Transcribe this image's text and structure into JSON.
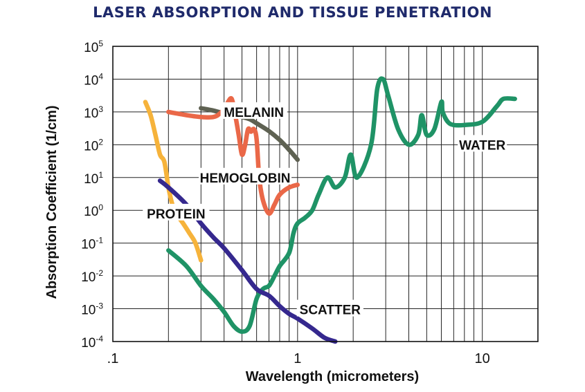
{
  "chart_data": {
    "type": "line",
    "title": "LASER ABSORPTION AND TISSUE PENETRATION",
    "xlabel": "Wavelength (micrometers)",
    "ylabel": "Absorption Coefficient (1/cm)",
    "x_scale": "log",
    "y_scale": "log",
    "xlim": [
      0.1,
      20
    ],
    "ylim": [
      0.0001,
      100000
    ],
    "grid": true,
    "x_ticks": [
      {
        "value": 0.1,
        "label": ".1"
      },
      {
        "value": 1,
        "label": "1"
      },
      {
        "value": 10,
        "label": "10"
      }
    ],
    "y_ticks": [
      {
        "value": 100000,
        "base": "10",
        "exp": "5"
      },
      {
        "value": 10000,
        "base": "10",
        "exp": "4"
      },
      {
        "value": 1000,
        "base": "10",
        "exp": "3"
      },
      {
        "value": 100,
        "base": "10",
        "exp": "2"
      },
      {
        "value": 10,
        "base": "10",
        "exp": "1"
      },
      {
        "value": 1,
        "base": "10",
        "exp": "0"
      },
      {
        "value": 0.1,
        "base": "10",
        "exp": "-1"
      },
      {
        "value": 0.01,
        "base": "10",
        "exp": "-2"
      },
      {
        "value": 0.001,
        "base": "10",
        "exp": "-3"
      },
      {
        "value": 0.0001,
        "base": "10",
        "exp": "-4"
      }
    ],
    "series": [
      {
        "name": "MELANIN",
        "color": "#5e6152",
        "label_at": [
          0.58,
          1000
        ],
        "x": [
          0.3,
          0.35,
          0.4,
          0.45,
          0.5,
          0.55,
          0.6,
          0.7,
          0.8,
          0.9,
          1.0
        ],
        "y": [
          1300,
          1100,
          900,
          800,
          700,
          600,
          450,
          260,
          140,
          70,
          35
        ]
      },
      {
        "name": "HEMOGLOBIN",
        "color": "#ea6848",
        "label_at": [
          0.52,
          10
        ],
        "x": [
          0.2,
          0.25,
          0.3,
          0.35,
          0.38,
          0.41,
          0.42,
          0.44,
          0.46,
          0.48,
          0.5,
          0.52,
          0.54,
          0.56,
          0.58,
          0.6,
          0.62,
          0.65,
          0.7,
          0.75,
          0.8,
          0.9,
          1.0
        ],
        "y": [
          1000,
          800,
          700,
          700,
          900,
          1500,
          2000,
          2500,
          800,
          200,
          50,
          100,
          300,
          250,
          300,
          150,
          10,
          2,
          0.8,
          1.5,
          3,
          5,
          6
        ]
      },
      {
        "name": "WATER",
        "color": "#1f9366",
        "label_at": [
          10,
          100
        ],
        "x": [
          0.2,
          0.25,
          0.3,
          0.35,
          0.4,
          0.45,
          0.5,
          0.55,
          0.6,
          0.65,
          0.7,
          0.75,
          0.8,
          0.9,
          0.95,
          1.0,
          1.1,
          1.2,
          1.3,
          1.45,
          1.6,
          1.8,
          1.94,
          2.1,
          2.5,
          2.7,
          2.9,
          3.1,
          3.5,
          4.0,
          4.5,
          4.7,
          5.0,
          5.5,
          6.0,
          6.1,
          6.5,
          7.0,
          8.0,
          10.0,
          12.0,
          13.0,
          15.0
        ],
        "y": [
          0.06,
          0.02,
          0.005,
          0.002,
          0.0008,
          0.0003,
          0.0002,
          0.0003,
          0.002,
          0.004,
          0.005,
          0.01,
          0.02,
          0.05,
          0.2,
          0.4,
          0.6,
          1,
          3,
          10,
          5,
          10,
          50,
          10,
          100,
          5000,
          10000,
          3000,
          300,
          100,
          200,
          800,
          200,
          300,
          2000,
          1000,
          500,
          400,
          400,
          500,
          1500,
          2500,
          2500
        ]
      },
      {
        "name": "PROTEIN",
        "color": "#f6b33b",
        "label_at": [
          0.22,
          0.8
        ],
        "x": [
          0.15,
          0.16,
          0.17,
          0.18,
          0.19,
          0.2,
          0.21,
          0.22,
          0.24,
          0.26,
          0.28,
          0.3
        ],
        "y": [
          2000,
          800,
          200,
          50,
          30,
          5,
          1.5,
          0.8,
          0.4,
          0.2,
          0.1,
          0.03
        ]
      },
      {
        "name": "SCATTER",
        "color": "#35288e",
        "label_at": [
          1.5,
          0.00095
        ],
        "x": [
          0.18,
          0.2,
          0.25,
          0.3,
          0.35,
          0.4,
          0.5,
          0.6,
          0.7,
          0.8,
          0.9,
          1.0,
          1.2,
          1.4,
          1.6
        ],
        "y": [
          8,
          5,
          1.5,
          0.4,
          0.15,
          0.07,
          0.015,
          0.004,
          0.0025,
          0.0012,
          0.0007,
          0.0005,
          0.00025,
          0.00013,
          0.0001
        ]
      }
    ]
  }
}
